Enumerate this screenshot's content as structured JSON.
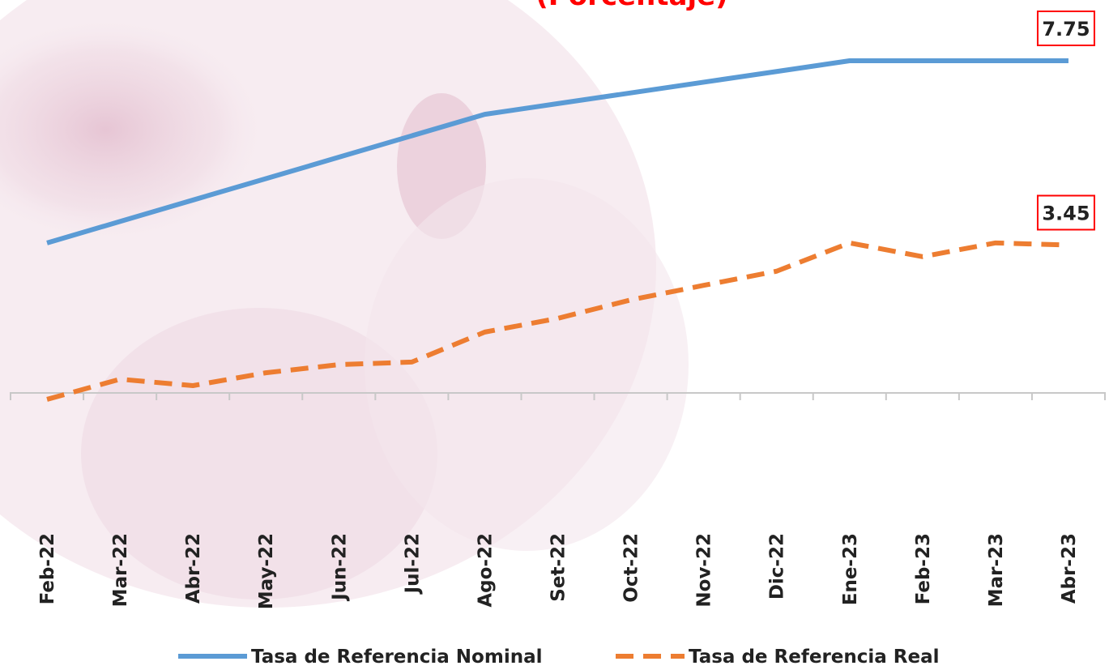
{
  "chart_data": {
    "type": "line",
    "subtitle": "(Porcentaje)",
    "categories": [
      "Feb-22",
      "Mar-22",
      "Abr-22",
      "May-22",
      "Jun-22",
      "Jul-22",
      "Ago-22",
      "Set-22",
      "Oct-22",
      "Nov-22",
      "Dic-22",
      "Ene-23",
      "Feb-23",
      "Mar-23",
      "Abr-23"
    ],
    "series": [
      {
        "name": "Tasa de Referencia Nominal",
        "color": "#5b9bd5",
        "style": "solid",
        "values": [
          3.5,
          4.0,
          4.5,
          5.0,
          5.5,
          6.0,
          6.5,
          6.75,
          7.0,
          7.25,
          7.5,
          7.75,
          7.75,
          7.75,
          7.75
        ]
      },
      {
        "name": "Tasa de Referencia Real",
        "color": "#ed7d31",
        "style": "dashed",
        "values": [
          -0.15,
          0.32,
          0.17,
          0.47,
          0.66,
          0.72,
          1.42,
          1.74,
          2.17,
          2.51,
          2.84,
          3.5,
          3.18,
          3.5,
          3.45
        ]
      }
    ],
    "legend": "bottom"
  }
}
